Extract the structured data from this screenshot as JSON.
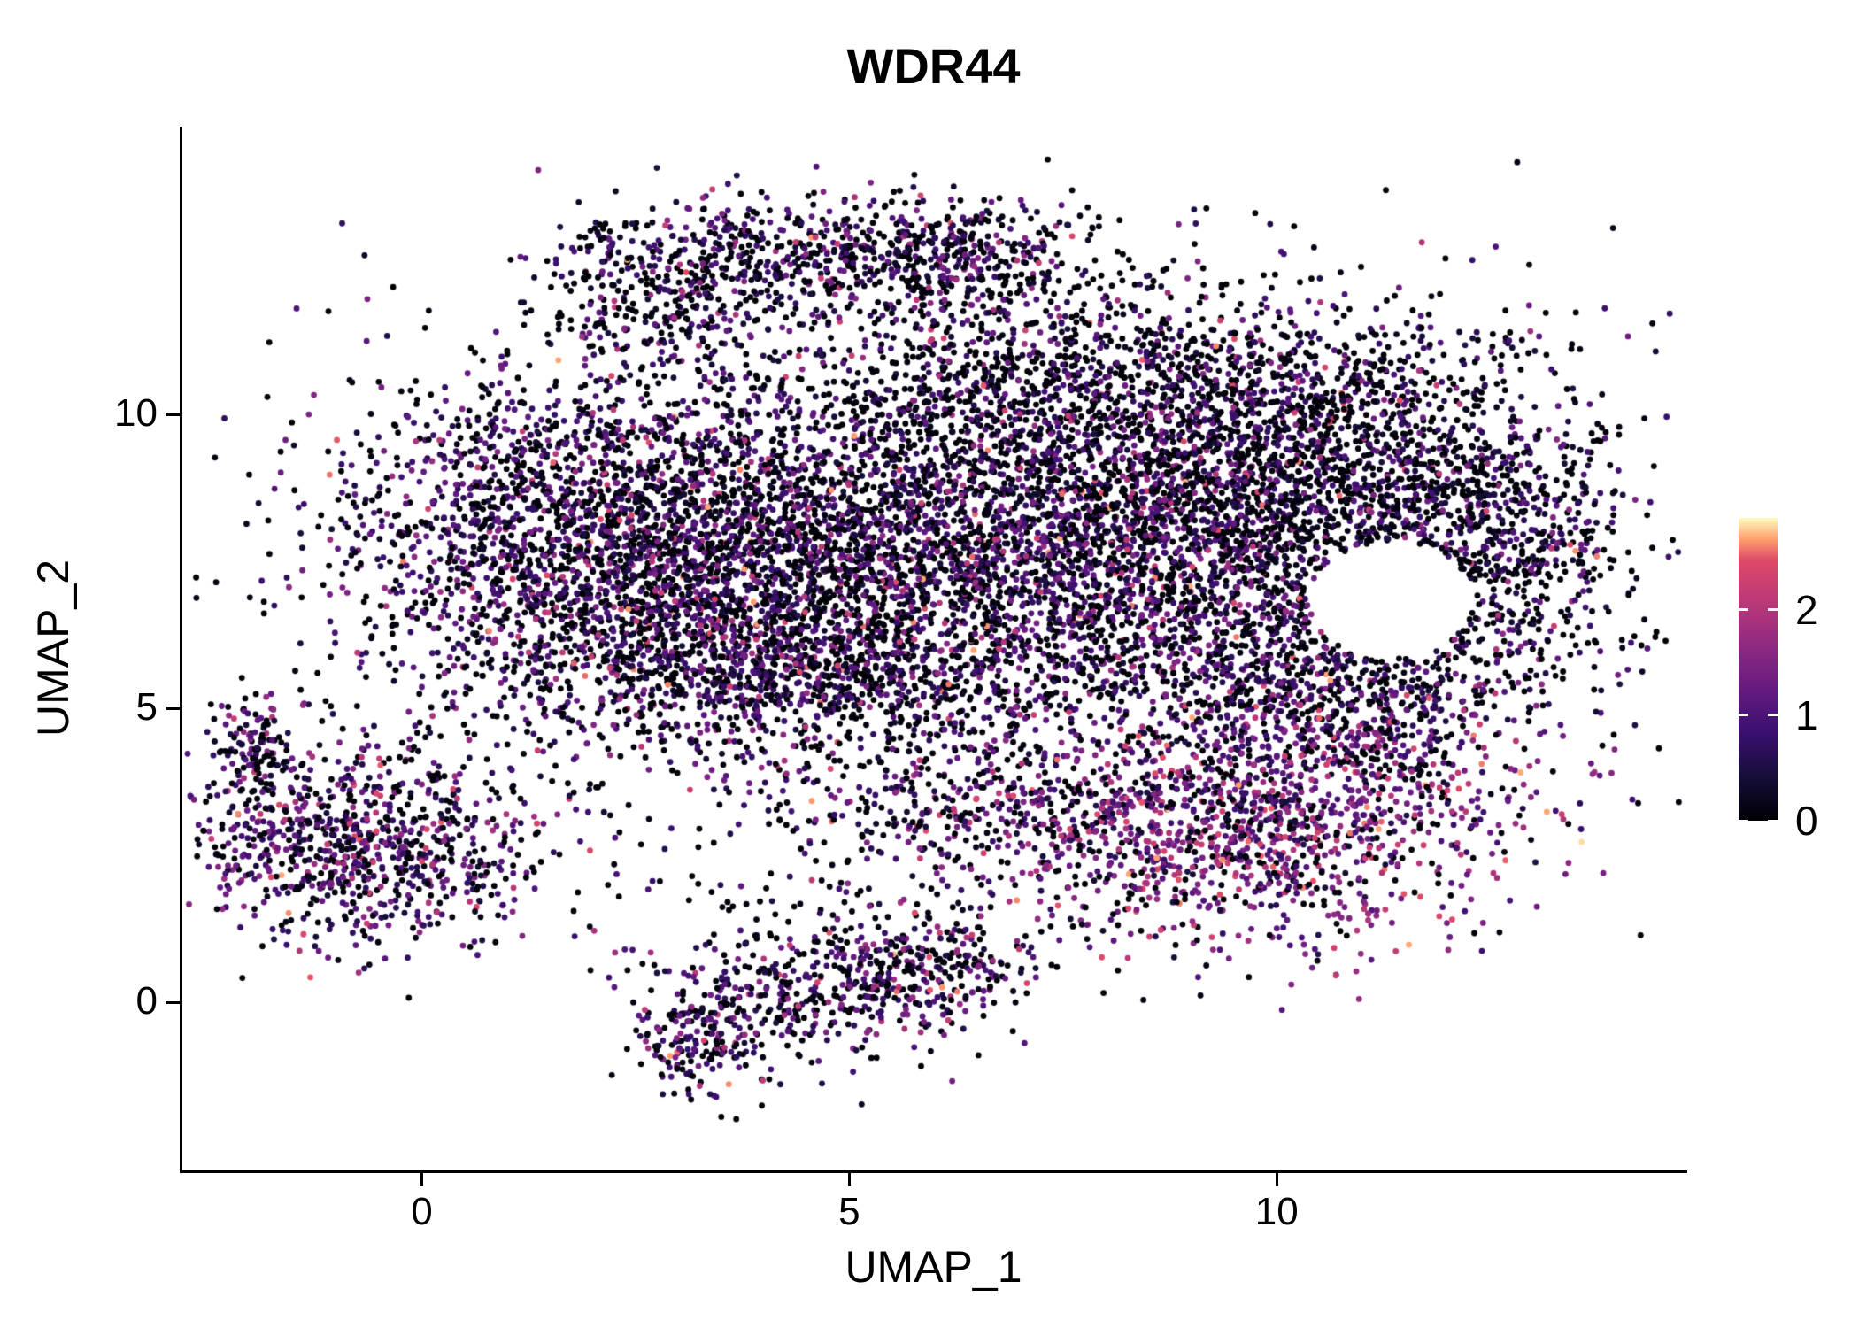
{
  "chart_data": {
    "type": "scatter",
    "title": "WDR44",
    "xlabel": "UMAP_1",
    "ylabel": "UMAP_2",
    "xlim": [
      -2.8,
      14.77
    ],
    "ylim": [
      -2.86,
      14.9
    ],
    "x_ticks": [
      0,
      5,
      10
    ],
    "y_ticks": [
      0,
      5,
      10
    ],
    "grid": false,
    "legend_position": "right",
    "point_radius_px": 3.4,
    "seed": 20,
    "colorbar": {
      "min": 0,
      "max": 2.87,
      "tick_values": [
        0,
        1,
        2
      ],
      "tick_labels": [
        "0",
        "1",
        "2"
      ],
      "stops": [
        [
          0.0,
          "#000004"
        ],
        [
          0.14,
          "#140e36"
        ],
        [
          0.29,
          "#3b0f70"
        ],
        [
          0.43,
          "#641a80"
        ],
        [
          0.57,
          "#8c2981"
        ],
        [
          0.71,
          "#b73779"
        ],
        [
          0.86,
          "#de4968"
        ],
        [
          0.93,
          "#fe9f6d"
        ],
        [
          1.0,
          "#fcfdbf"
        ]
      ]
    },
    "holes": [
      {
        "cx": 11.35,
        "cy": 6.85,
        "rx": 0.95,
        "ry": 1.0
      }
    ],
    "clusters": [
      {
        "name": "west-lobe",
        "cx": 1.6,
        "cy": 7.9,
        "sx": 1.35,
        "sy": 1.5,
        "n": 1700,
        "zero_frac": 0.38,
        "expr_mean": 0.9,
        "hot_frac": 0.03
      },
      {
        "name": "west-mid",
        "cx": 3.6,
        "cy": 7.1,
        "sx": 1.25,
        "sy": 1.5,
        "n": 1500,
        "zero_frac": 0.42,
        "expr_mean": 0.85,
        "hot_frac": 0.03
      },
      {
        "name": "center",
        "cx": 5.8,
        "cy": 7.9,
        "sx": 1.5,
        "sy": 1.6,
        "n": 1400,
        "zero_frac": 0.47,
        "expr_mean": 0.8,
        "hot_frac": 0.03
      },
      {
        "name": "east-core",
        "cx": 8.3,
        "cy": 8.0,
        "sx": 1.5,
        "sy": 1.5,
        "n": 1900,
        "zero_frac": 0.4,
        "expr_mean": 0.95,
        "hot_frac": 0.03
      },
      {
        "name": "east-lobe",
        "cx": 10.6,
        "cy": 8.7,
        "sx": 1.5,
        "sy": 1.25,
        "n": 1300,
        "zero_frac": 0.52,
        "expr_mean": 0.7,
        "hot_frac": 0.02
      },
      {
        "name": "far-east",
        "cx": 12.6,
        "cy": 7.6,
        "sx": 0.85,
        "sy": 1.4,
        "n": 650,
        "zero_frac": 0.47,
        "expr_mean": 0.8,
        "hot_frac": 0.02
      },
      {
        "name": "top-arc",
        "cx": 4.8,
        "cy": 12.8,
        "sx": 1.3,
        "sy": 0.45,
        "n": 500,
        "zero_frac": 0.45,
        "expr_mean": 0.85,
        "hot_frac": 0.03
      },
      {
        "name": "top-arc-left",
        "cx": 2.9,
        "cy": 11.9,
        "sx": 0.75,
        "sy": 0.75,
        "n": 320,
        "zero_frac": 0.45,
        "expr_mean": 0.85,
        "hot_frac": 0.03
      },
      {
        "name": "top-arc-right",
        "cx": 6.3,
        "cy": 12.7,
        "sx": 0.7,
        "sy": 0.5,
        "n": 220,
        "zero_frac": 0.45,
        "expr_mean": 0.85,
        "hot_frac": 0.03
      },
      {
        "name": "top-sparse",
        "cx": 6.8,
        "cy": 10.9,
        "sx": 1.6,
        "sy": 1.0,
        "n": 420,
        "zero_frac": 0.55,
        "expr_mean": 0.65,
        "hot_frac": 0.02
      },
      {
        "name": "northeast-band",
        "cx": 9.5,
        "cy": 10.4,
        "sx": 1.8,
        "sy": 0.85,
        "n": 650,
        "zero_frac": 0.52,
        "expr_mean": 0.7,
        "hot_frac": 0.02
      },
      {
        "name": "south-band",
        "cx": 4.8,
        "cy": 5.6,
        "sx": 2.2,
        "sy": 0.75,
        "n": 850,
        "zero_frac": 0.45,
        "expr_mean": 0.85,
        "hot_frac": 0.03
      },
      {
        "name": "southeast-pink",
        "cx": 9.6,
        "cy": 2.9,
        "sx": 1.55,
        "sy": 1.0,
        "n": 1250,
        "zero_frac": 0.2,
        "expr_mean": 1.3,
        "hot_frac": 0.08
      },
      {
        "name": "southeast-upper",
        "cx": 10.9,
        "cy": 4.7,
        "sx": 1.1,
        "sy": 0.8,
        "n": 480,
        "zero_frac": 0.32,
        "expr_mean": 1.05,
        "hot_frac": 0.05
      },
      {
        "name": "east-south",
        "cx": 10.3,
        "cy": 5.8,
        "sx": 1.0,
        "sy": 0.7,
        "n": 380,
        "zero_frac": 0.4,
        "expr_mean": 0.9,
        "hot_frac": 0.03
      },
      {
        "name": "south-bridge",
        "cx": 6.6,
        "cy": 3.4,
        "sx": 1.2,
        "sy": 0.6,
        "n": 330,
        "zero_frac": 0.45,
        "expr_mean": 0.9,
        "hot_frac": 0.04
      },
      {
        "name": "left-cluster",
        "cx": -0.7,
        "cy": 2.7,
        "sx": 1.0,
        "sy": 0.85,
        "n": 900,
        "zero_frac": 0.32,
        "expr_mean": 1.0,
        "hot_frac": 0.04
      },
      {
        "name": "left-tail",
        "cx": -1.95,
        "cy": 4.25,
        "sx": 0.22,
        "sy": 0.45,
        "n": 110,
        "zero_frac": 0.4,
        "expr_mean": 0.9,
        "hot_frac": 0.03
      },
      {
        "name": "bottom-cluster",
        "cx": 4.8,
        "cy": 0.3,
        "sx": 0.95,
        "sy": 0.6,
        "n": 430,
        "zero_frac": 0.4,
        "expr_mean": 0.95,
        "hot_frac": 0.04
      },
      {
        "name": "bottom-tail",
        "cx": 3.3,
        "cy": -0.55,
        "sx": 0.4,
        "sy": 0.55,
        "n": 210,
        "zero_frac": 0.4,
        "expr_mean": 0.9,
        "hot_frac": 0.03
      },
      {
        "name": "bottom-arm",
        "cx": 6.0,
        "cy": 0.6,
        "sx": 0.6,
        "sy": 0.4,
        "n": 150,
        "zero_frac": 0.45,
        "expr_mean": 0.9,
        "hot_frac": 0.03
      },
      {
        "name": "sparse-halo",
        "cx": 6.5,
        "cy": 8.2,
        "sx": 3.4,
        "sy": 2.5,
        "n": 850,
        "zero_frac": 0.55,
        "expr_mean": 0.6,
        "hot_frac": 0.02
      },
      {
        "name": "south-scatter",
        "cx": 4.5,
        "cy": 2.0,
        "sx": 1.5,
        "sy": 0.8,
        "n": 90,
        "zero_frac": 0.5,
        "expr_mean": 0.8,
        "hot_frac": 0.03
      }
    ]
  }
}
